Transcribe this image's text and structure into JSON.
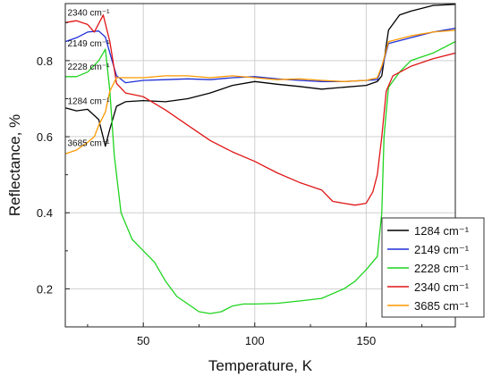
{
  "chart_data": {
    "type": "line",
    "title": "",
    "xlabel": "Temperature, K",
    "ylabel": "Reflectance, %",
    "xlim": [
      15,
      190
    ],
    "ylim": [
      0.1,
      0.95
    ],
    "xticks": [
      50,
      100,
      150
    ],
    "yticks": [
      0.2,
      0.4,
      0.6,
      0.8
    ],
    "grid": true,
    "legend_position": "bottom-right",
    "series": [
      {
        "name": "1284 cm⁻¹",
        "color": "#000000",
        "points": [
          [
            15,
            0.676
          ],
          [
            20,
            0.668
          ],
          [
            25,
            0.672
          ],
          [
            30,
            0.645
          ],
          [
            33,
            0.575
          ],
          [
            35,
            0.62
          ],
          [
            38,
            0.68
          ],
          [
            42,
            0.692
          ],
          [
            50,
            0.695
          ],
          [
            60,
            0.692
          ],
          [
            70,
            0.7
          ],
          [
            80,
            0.715
          ],
          [
            90,
            0.735
          ],
          [
            100,
            0.745
          ],
          [
            110,
            0.738
          ],
          [
            120,
            0.732
          ],
          [
            130,
            0.725
          ],
          [
            140,
            0.73
          ],
          [
            150,
            0.735
          ],
          [
            155,
            0.745
          ],
          [
            157,
            0.76
          ],
          [
            160,
            0.88
          ],
          [
            165,
            0.92
          ],
          [
            170,
            0.93
          ],
          [
            180,
            0.945
          ],
          [
            190,
            0.948
          ]
        ]
      },
      {
        "name": "2149 cm⁻¹",
        "color": "#1f2fd6",
        "points": [
          [
            15,
            0.85
          ],
          [
            20,
            0.86
          ],
          [
            25,
            0.875
          ],
          [
            30,
            0.878
          ],
          [
            33,
            0.862
          ],
          [
            35,
            0.82
          ],
          [
            38,
            0.76
          ],
          [
            42,
            0.742
          ],
          [
            50,
            0.748
          ],
          [
            60,
            0.75
          ],
          [
            70,
            0.752
          ],
          [
            80,
            0.75
          ],
          [
            90,
            0.755
          ],
          [
            100,
            0.758
          ],
          [
            110,
            0.752
          ],
          [
            120,
            0.748
          ],
          [
            130,
            0.745
          ],
          [
            140,
            0.745
          ],
          [
            150,
            0.748
          ],
          [
            155,
            0.75
          ],
          [
            157,
            0.78
          ],
          [
            160,
            0.845
          ],
          [
            170,
            0.86
          ],
          [
            180,
            0.875
          ],
          [
            190,
            0.885
          ]
        ]
      },
      {
        "name": "2228 cm⁻¹",
        "color": "#1fd41f",
        "points": [
          [
            15,
            0.758
          ],
          [
            20,
            0.758
          ],
          [
            25,
            0.77
          ],
          [
            30,
            0.8
          ],
          [
            33,
            0.83
          ],
          [
            35,
            0.72
          ],
          [
            37,
            0.55
          ],
          [
            40,
            0.4
          ],
          [
            45,
            0.33
          ],
          [
            50,
            0.3
          ],
          [
            55,
            0.27
          ],
          [
            60,
            0.22
          ],
          [
            65,
            0.18
          ],
          [
            70,
            0.16
          ],
          [
            75,
            0.14
          ],
          [
            80,
            0.135
          ],
          [
            85,
            0.14
          ],
          [
            90,
            0.155
          ],
          [
            95,
            0.16
          ],
          [
            100,
            0.16
          ],
          [
            110,
            0.162
          ],
          [
            120,
            0.168
          ],
          [
            130,
            0.175
          ],
          [
            140,
            0.2
          ],
          [
            145,
            0.22
          ],
          [
            150,
            0.25
          ],
          [
            155,
            0.285
          ],
          [
            157,
            0.4
          ],
          [
            158,
            0.6
          ],
          [
            160,
            0.73
          ],
          [
            165,
            0.77
          ],
          [
            170,
            0.8
          ],
          [
            180,
            0.82
          ],
          [
            190,
            0.85
          ]
        ]
      },
      {
        "name": "2340 cm⁻¹",
        "color": "#e01616",
        "points": [
          [
            15,
            0.9
          ],
          [
            20,
            0.905
          ],
          [
            25,
            0.895
          ],
          [
            28,
            0.875
          ],
          [
            32,
            0.92
          ],
          [
            35,
            0.85
          ],
          [
            38,
            0.74
          ],
          [
            42,
            0.715
          ],
          [
            50,
            0.705
          ],
          [
            60,
            0.67
          ],
          [
            70,
            0.63
          ],
          [
            80,
            0.59
          ],
          [
            90,
            0.56
          ],
          [
            100,
            0.535
          ],
          [
            110,
            0.505
          ],
          [
            120,
            0.48
          ],
          [
            130,
            0.46
          ],
          [
            135,
            0.43
          ],
          [
            140,
            0.425
          ],
          [
            145,
            0.42
          ],
          [
            150,
            0.425
          ],
          [
            153,
            0.455
          ],
          [
            155,
            0.5
          ],
          [
            157,
            0.6
          ],
          [
            159,
            0.72
          ],
          [
            162,
            0.76
          ],
          [
            170,
            0.785
          ],
          [
            180,
            0.805
          ],
          [
            190,
            0.82
          ]
        ]
      },
      {
        "name": "3685 cm⁻¹",
        "color": "#ff9900",
        "points": [
          [
            15,
            0.555
          ],
          [
            20,
            0.565
          ],
          [
            25,
            0.585
          ],
          [
            28,
            0.6
          ],
          [
            30,
            0.63
          ],
          [
            33,
            0.665
          ],
          [
            35,
            0.72
          ],
          [
            38,
            0.755
          ],
          [
            42,
            0.755
          ],
          [
            50,
            0.755
          ],
          [
            60,
            0.76
          ],
          [
            70,
            0.76
          ],
          [
            80,
            0.755
          ],
          [
            90,
            0.76
          ],
          [
            100,
            0.755
          ],
          [
            110,
            0.75
          ],
          [
            120,
            0.752
          ],
          [
            130,
            0.748
          ],
          [
            140,
            0.745
          ],
          [
            150,
            0.748
          ],
          [
            155,
            0.755
          ],
          [
            157,
            0.785
          ],
          [
            160,
            0.85
          ],
          [
            170,
            0.865
          ],
          [
            180,
            0.875
          ],
          [
            190,
            0.88
          ]
        ]
      }
    ],
    "annotations": [
      {
        "text": "2340 cm⁻¹",
        "x": 16,
        "y": 0.918
      },
      {
        "text": "2149 cm⁻¹",
        "x": 16,
        "y": 0.837
      },
      {
        "text": "2228 cm⁻¹",
        "x": 16,
        "y": 0.776
      },
      {
        "text": "1284 cm⁻¹",
        "x": 16,
        "y": 0.686
      },
      {
        "text": "3685 cm⁻¹",
        "x": 16,
        "y": 0.575
      }
    ]
  }
}
